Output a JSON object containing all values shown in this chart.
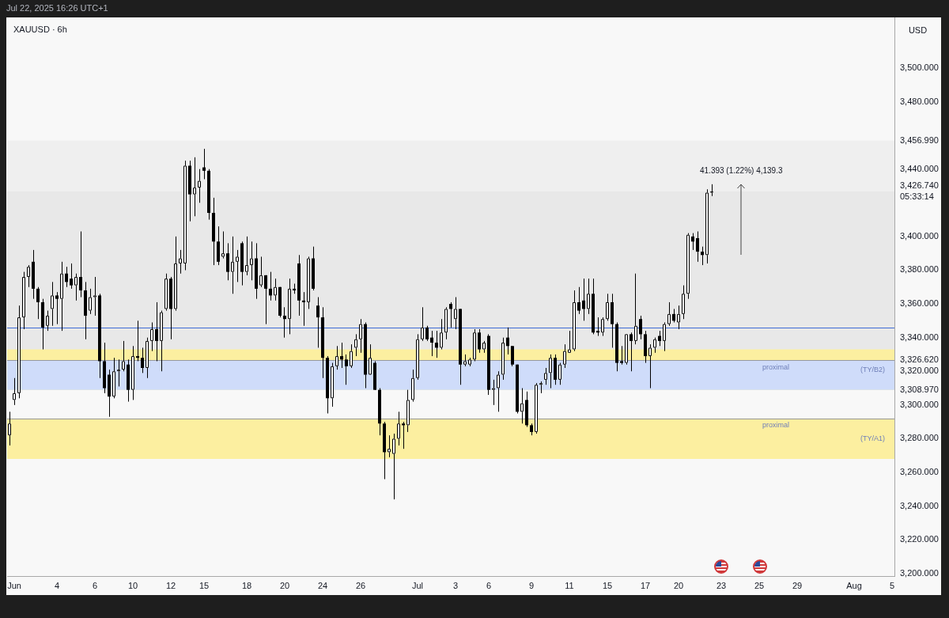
{
  "chart_data": {
    "type": "candlestick",
    "title": "XAUUSD · 6h",
    "ylabel": "USD",
    "categories": [
      null,
      "Jun",
      null,
      null,
      null,
      null,
      null,
      null,
      null,
      null,
      "4",
      null,
      null,
      null,
      null,
      null,
      null,
      null,
      "6",
      null,
      null,
      null,
      null,
      null,
      null,
      null,
      "10",
      null,
      null,
      null,
      null,
      null,
      null,
      null,
      "12",
      null,
      null,
      null,
      null,
      null,
      null,
      "15",
      null,
      null,
      null,
      null,
      null,
      null,
      null,
      null,
      "18",
      null,
      null,
      null,
      null,
      null,
      null,
      null,
      "20",
      null,
      null,
      null,
      null,
      null,
      null,
      null,
      "24",
      null,
      null,
      null,
      null,
      null,
      null,
      null,
      "26",
      null,
      null,
      null,
      null,
      null,
      null,
      null,
      null,
      null,
      null,
      null,
      "Jul",
      null,
      null,
      null,
      null,
      null,
      null,
      null,
      "3",
      null,
      null,
      null,
      null,
      null,
      null,
      "6",
      null,
      null,
      null,
      null,
      null,
      null,
      null,
      null,
      "9",
      null,
      null,
      null,
      null,
      null,
      null,
      null,
      "11",
      null,
      null,
      null,
      null,
      null,
      null,
      null,
      "15",
      null,
      null,
      null,
      null,
      null,
      null,
      null,
      "17",
      null,
      null,
      null,
      null,
      null,
      null,
      "20",
      null,
      null,
      null,
      null,
      null,
      null,
      null,
      null,
      "23",
      null,
      null,
      null,
      null,
      null,
      null,
      null,
      "25",
      null,
      null,
      null,
      null,
      null,
      null,
      null,
      "29",
      null,
      null,
      null,
      null,
      null,
      null,
      null,
      null,
      null,
      null,
      null,
      "Aug",
      null,
      null,
      null,
      null,
      null,
      null,
      null,
      "5"
    ],
    "ohlc": [
      [
        3282,
        3296,
        3276,
        3289
      ],
      [
        3303,
        3316,
        3300,
        3307
      ],
      [
        3307,
        3359,
        3304,
        3352
      ],
      [
        3352,
        3379,
        3345,
        3376
      ],
      [
        3376,
        3383,
        3370,
        3382
      ],
      [
        3385,
        3392,
        3363,
        3369
      ],
      [
        3369,
        3370,
        3351,
        3361
      ],
      [
        3361,
        3363,
        3333,
        3346
      ],
      [
        3347,
        3356,
        3344,
        3353
      ],
      [
        3357,
        3373,
        3347,
        3365
      ],
      [
        3365,
        3367,
        3348,
        3363
      ],
      [
        3363,
        3385,
        3344,
        3378
      ],
      [
        3378,
        3382,
        3370,
        3373
      ],
      [
        3375,
        3384,
        3369,
        3371
      ],
      [
        3371,
        3378,
        3362,
        3376
      ],
      [
        3376,
        3403,
        3364,
        3368
      ],
      [
        3368,
        3373,
        3339,
        3353
      ],
      [
        3356,
        3369,
        3354,
        3364
      ],
      [
        3364,
        3376,
        3353,
        3365
      ],
      [
        3365,
        3366,
        3316,
        3326
      ],
      [
        3326,
        3337,
        3307,
        3310
      ],
      [
        3318,
        3321,
        3293,
        3305
      ],
      [
        3305,
        3328,
        3304,
        3320
      ],
      [
        3320,
        3327,
        3311,
        3321
      ],
      [
        3321,
        3338,
        3320,
        3326
      ],
      [
        3324,
        3327,
        3302,
        3309
      ],
      [
        3309,
        3335,
        3303,
        3329
      ],
      [
        3329,
        3350,
        3326,
        3328
      ],
      [
        3328,
        3334,
        3319,
        3322
      ],
      [
        3322,
        3340,
        3316,
        3338
      ],
      [
        3338,
        3349,
        3332,
        3345
      ],
      [
        3345,
        3361,
        3326,
        3338
      ],
      [
        3338,
        3356,
        3320,
        3355
      ],
      [
        3357,
        3378,
        3356,
        3375
      ],
      [
        3375,
        3376,
        3339,
        3357
      ],
      [
        3357,
        3400,
        3356,
        3384
      ],
      [
        3384,
        3392,
        3378,
        3387
      ],
      [
        3384,
        3445,
        3380,
        3442
      ],
      [
        3442,
        3445,
        3409,
        3425
      ],
      [
        3425,
        3447,
        3412,
        3429
      ],
      [
        3429,
        3440,
        3420,
        3433
      ],
      [
        3441,
        3452,
        3434,
        3439
      ],
      [
        3439,
        3440,
        3410,
        3414
      ],
      [
        3414,
        3423,
        3383,
        3397
      ],
      [
        3397,
        3406,
        3383,
        3385
      ],
      [
        3388,
        3403,
        3387,
        3390
      ],
      [
        3390,
        3396,
        3374,
        3379
      ],
      [
        3379,
        3400,
        3366,
        3385
      ],
      [
        3385,
        3392,
        3373,
        3388
      ],
      [
        3396,
        3397,
        3371,
        3379
      ],
      [
        3379,
        3400,
        3377,
        3383
      ],
      [
        3383,
        3397,
        3374,
        3387
      ],
      [
        3387,
        3396,
        3363,
        3369
      ],
      [
        3371,
        3388,
        3370,
        3377
      ],
      [
        3377,
        3377,
        3348,
        3369
      ],
      [
        3369,
        3379,
        3362,
        3365
      ],
      [
        3365,
        3375,
        3362,
        3370
      ],
      [
        3370,
        3370,
        3352,
        3353
      ],
      [
        3353,
        3358,
        3340,
        3351
      ],
      [
        3351,
        3375,
        3342,
        3369
      ],
      [
        3369,
        3372,
        3366,
        3368
      ],
      [
        3384,
        3389,
        3353,
        3362
      ],
      [
        3362,
        3367,
        3347,
        3361
      ],
      [
        3361,
        3388,
        3357,
        3387
      ],
      [
        3387,
        3394,
        3368,
        3369
      ],
      [
        3359,
        3364,
        3334,
        3352
      ],
      [
        3352,
        3358,
        3316,
        3328
      ],
      [
        3328,
        3329,
        3295,
        3304
      ],
      [
        3304,
        3325,
        3299,
        3323
      ],
      [
        3323,
        3335,
        3321,
        3329
      ],
      [
        3329,
        3337,
        3322,
        3327
      ],
      [
        3327,
        3330,
        3312,
        3323
      ],
      [
        3323,
        3336,
        3322,
        3332
      ],
      [
        3334,
        3342,
        3329,
        3339
      ],
      [
        3339,
        3351,
        3331,
        3348
      ],
      [
        3348,
        3349,
        3310,
        3318
      ],
      [
        3318,
        3336,
        3318,
        3328
      ],
      [
        3325,
        3326,
        3309,
        3309
      ],
      [
        3309,
        3310,
        3282,
        3289
      ],
      [
        3289,
        3290,
        3256,
        3272
      ],
      [
        3272,
        3282,
        3269,
        3274
      ],
      [
        3271,
        3283,
        3244,
        3280
      ],
      [
        3280,
        3296,
        3276,
        3289
      ],
      [
        3289,
        3290,
        3274,
        3288
      ],
      [
        3288,
        3309,
        3284,
        3303
      ],
      [
        3303,
        3321,
        3302,
        3316
      ],
      [
        3316,
        3342,
        3315,
        3339
      ],
      [
        3339,
        3358,
        3338,
        3346
      ],
      [
        3346,
        3347,
        3338,
        3339
      ],
      [
        3340,
        3344,
        3329,
        3337
      ],
      [
        3337,
        3344,
        3328,
        3334
      ],
      [
        3334,
        3351,
        3333,
        3343
      ],
      [
        3343,
        3358,
        3339,
        3357
      ],
      [
        3360,
        3361,
        3346,
        3357
      ],
      [
        3351,
        3364,
        3345,
        3357
      ],
      [
        3357,
        3357,
        3312,
        3324
      ],
      [
        3324,
        3330,
        3323,
        3326
      ],
      [
        3324,
        3328,
        3323,
        3327
      ],
      [
        3327,
        3345,
        3326,
        3343
      ],
      [
        3343,
        3345,
        3331,
        3333
      ],
      [
        3333,
        3338,
        3331,
        3337
      ],
      [
        3341,
        3342,
        3306,
        3309
      ],
      [
        3309,
        3315,
        3300,
        3310
      ],
      [
        3310,
        3320,
        3296,
        3318
      ],
      [
        3318,
        3340,
        3315,
        3337
      ],
      [
        3340,
        3346,
        3330,
        3335
      ],
      [
        3335,
        3335,
        3323,
        3324
      ],
      [
        3324,
        3324,
        3295,
        3296
      ],
      [
        3296,
        3310,
        3289,
        3301
      ],
      [
        3303,
        3308,
        3287,
        3288
      ],
      [
        3288,
        3289,
        3282,
        3284
      ],
      [
        3284,
        3313,
        3283,
        3312
      ],
      [
        3312,
        3314,
        3307,
        3313
      ],
      [
        3315,
        3322,
        3312,
        3319
      ],
      [
        3319,
        3330,
        3310,
        3328
      ],
      [
        3328,
        3330,
        3312,
        3315
      ],
      [
        3315,
        3325,
        3312,
        3324
      ],
      [
        3324,
        3336,
        3322,
        3332
      ],
      [
        3331,
        3344,
        3331,
        3333
      ],
      [
        3333,
        3368,
        3332,
        3361
      ],
      [
        3361,
        3370,
        3354,
        3356
      ],
      [
        3362,
        3375,
        3350,
        3357
      ],
      [
        3357,
        3375,
        3354,
        3366
      ],
      [
        3366,
        3375,
        3342,
        3343
      ],
      [
        3344,
        3352,
        3341,
        3343
      ],
      [
        3343,
        3352,
        3341,
        3351
      ],
      [
        3351,
        3366,
        3350,
        3361
      ],
      [
        3361,
        3366,
        3334,
        3348
      ],
      [
        3348,
        3349,
        3320,
        3325
      ],
      [
        3326,
        3335,
        3324,
        3325
      ],
      [
        3325,
        3342,
        3324,
        3342
      ],
      [
        3342,
        3343,
        3320,
        3338
      ],
      [
        3338,
        3378,
        3336,
        3347
      ],
      [
        3351,
        3353,
        3339,
        3342
      ],
      [
        3342,
        3344,
        3325,
        3329
      ],
      [
        3329,
        3336,
        3310,
        3334
      ],
      [
        3334,
        3340,
        3331,
        3339
      ],
      [
        3341,
        3344,
        3335,
        3338
      ],
      [
        3338,
        3349,
        3332,
        3348
      ],
      [
        3348,
        3361,
        3347,
        3354
      ],
      [
        3354,
        3357,
        3349,
        3350
      ],
      [
        3349,
        3359,
        3345,
        3354
      ],
      [
        3354,
        3371,
        3351,
        3366
      ],
      [
        3366,
        3402,
        3363,
        3401
      ],
      [
        3400,
        3402,
        3392,
        3397
      ],
      [
        3399,
        3403,
        3385,
        3391
      ],
      [
        3391,
        3394,
        3383,
        3389
      ],
      [
        3389,
        3428,
        3384,
        3426
      ],
      [
        3426,
        3431,
        3424,
        3426.74
      ],
      null,
      null,
      null,
      null,
      null,
      null,
      null,
      null,
      null,
      null,
      null,
      null,
      null,
      null,
      null,
      null,
      null,
      null,
      null,
      null,
      null,
      null,
      null,
      null,
      null,
      null,
      null,
      null,
      null,
      null,
      null,
      null,
      null,
      null,
      null,
      null,
      null,
      null
    ],
    "ylim": [
      3198.5,
      3530
    ],
    "yticks": [
      {
        "value": 3200,
        "label": "3,200.000"
      },
      {
        "value": 3220,
        "label": "3,220.000"
      },
      {
        "value": 3240,
        "label": "3,240.000"
      },
      {
        "value": 3260,
        "label": "3,260.000"
      },
      {
        "value": 3280,
        "label": "3,280.000"
      },
      {
        "value": 3300,
        "label": "3,300.000"
      },
      {
        "value": 3308.97,
        "label": "3,308.970"
      },
      {
        "value": 3320,
        "label": "3,320.000"
      },
      {
        "value": 3326.62,
        "label": "3,326.620"
      },
      {
        "value": 3340,
        "label": "3,340.000"
      },
      {
        "value": 3360,
        "label": "3,360.000"
      },
      {
        "value": 3380,
        "label": "3,380.000"
      },
      {
        "value": 3400,
        "label": "3,400.000"
      },
      {
        "value": 3426.74,
        "label": "3,426.740\n05:33:14"
      },
      {
        "value": 3440,
        "label": "3,440.000"
      },
      {
        "value": 3456.99,
        "label": "3,456.990"
      },
      {
        "value": 3480,
        "label": "3,480.000"
      },
      {
        "value": 3500,
        "label": "3,500.000"
      }
    ],
    "grid": false,
    "bands": [
      {
        "axis": "y",
        "from": 3326.62,
        "to": 3456.99,
        "color": "#efefef"
      },
      {
        "axis": "y",
        "from": 3326.62,
        "to": 3426.74,
        "color": "#e8e8e8"
      },
      {
        "axis": "y",
        "from": 3268,
        "to": 3292,
        "label": "(TY/A1)",
        "color": "#fcefa0"
      },
      {
        "axis": "y",
        "from": 3309,
        "to": 3333,
        "label": "(TY/B2)",
        "color": "#fcefa0"
      },
      {
        "axis": "y",
        "from": 3308.97,
        "to": 3326.62,
        "color": "#cfdcfa"
      }
    ],
    "ref_lines": [
      {
        "axis": "y",
        "value": 3346,
        "color": "#3d6bd6"
      },
      {
        "axis": "y",
        "value": 3326.62,
        "color": "#9598a1"
      },
      {
        "axis": "y",
        "value": 3292,
        "color": "#9598a1"
      }
    ],
    "annotations": [
      "Jul 22, 2025 16:26 UTC+1",
      "41.393 (1.22%) 4,139.3",
      {
        "text": "proximal",
        "y": 3292
      },
      {
        "text": "proximal",
        "y": 3326.62
      }
    ]
  }
}
